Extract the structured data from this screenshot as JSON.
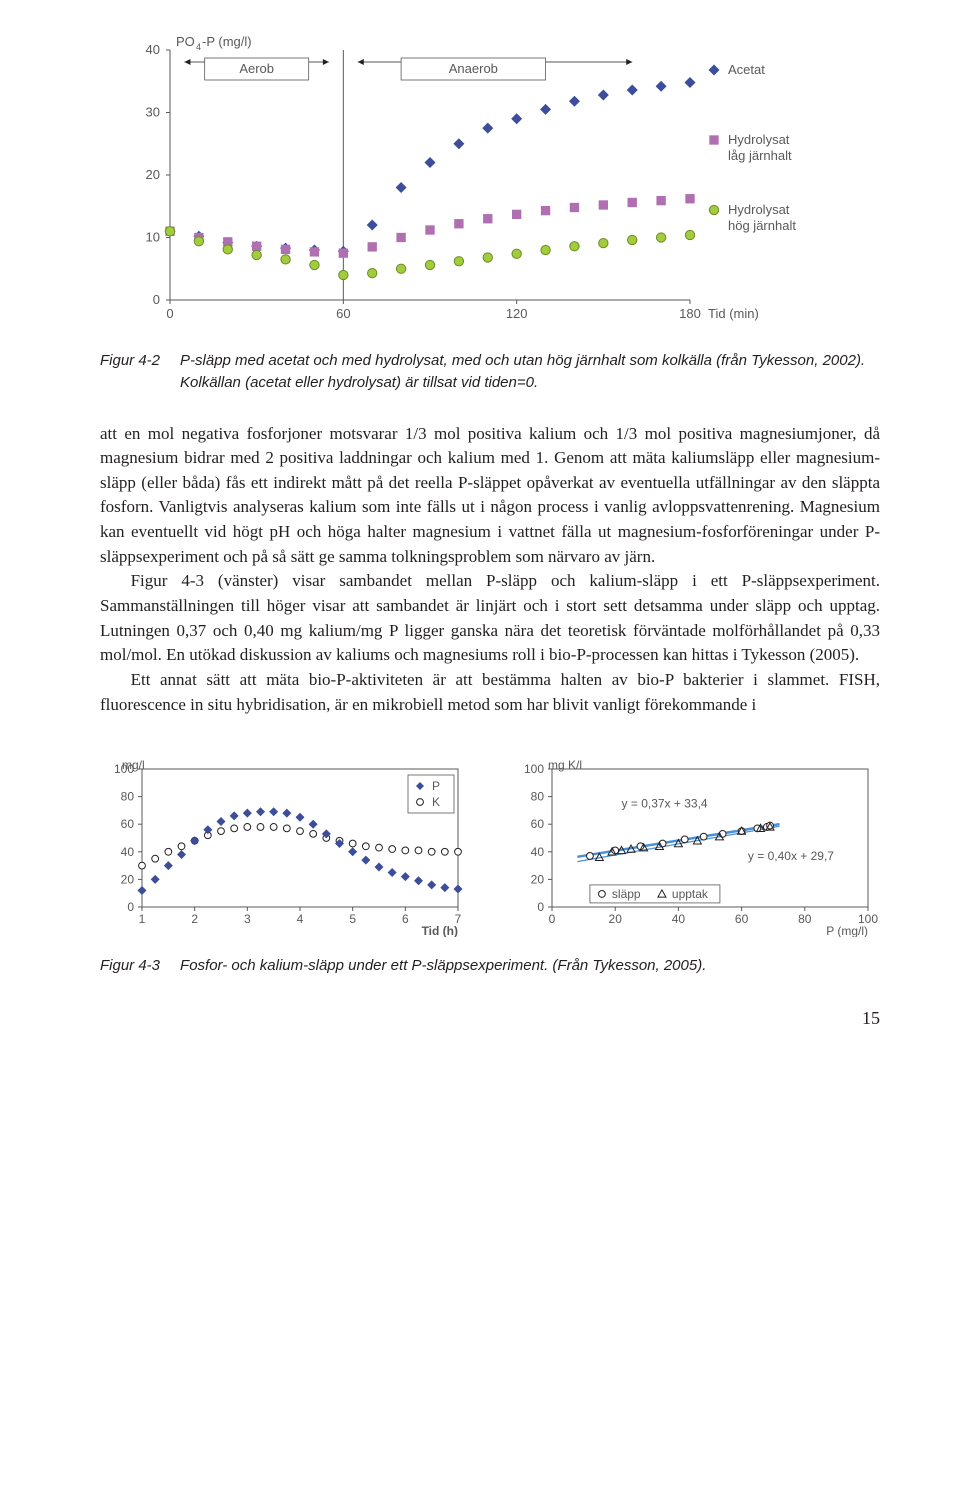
{
  "chart1": {
    "y_title": "PO₄-P (mg/l)",
    "y_ticks": [
      0,
      10,
      20,
      30,
      40
    ],
    "x_ticks": [
      0,
      60,
      120,
      180
    ],
    "x_title": "Tid (min)",
    "region_labels": {
      "aerob": "Aerob",
      "anaerob": "Anaerob"
    },
    "aerob_anaerob_split": 60,
    "series": {
      "acetat": {
        "label": "Acetat",
        "color": "#3b4d9b",
        "marker": "diamond",
        "x": [
          0,
          10,
          20,
          30,
          40,
          50,
          60,
          70,
          80,
          90,
          100,
          110,
          120,
          130,
          140,
          150,
          160,
          170,
          180
        ],
        "y": [
          11,
          10.2,
          9.2,
          8.6,
          8.3,
          8.0,
          7.8,
          12.0,
          18.0,
          22.0,
          25.0,
          27.5,
          29.0,
          30.5,
          31.8,
          32.8,
          33.6,
          34.2,
          34.8
        ]
      },
      "hydrolysat_low": {
        "label": "Hydrolysat låg järnhalt",
        "color": "#b06fb0",
        "marker": "square",
        "x": [
          0,
          10,
          20,
          30,
          40,
          50,
          60,
          70,
          80,
          90,
          100,
          110,
          120,
          130,
          140,
          150,
          160,
          170,
          180
        ],
        "y": [
          11,
          10.0,
          9.3,
          8.6,
          8.1,
          7.7,
          7.5,
          8.5,
          10.0,
          11.2,
          12.2,
          13.0,
          13.7,
          14.3,
          14.8,
          15.2,
          15.6,
          15.9,
          16.2
        ]
      },
      "hydrolysat_high": {
        "label": "Hydrolysat hög järnhalt",
        "color": "#a0cc3e",
        "marker": "circle",
        "x": [
          0,
          10,
          20,
          30,
          40,
          50,
          60,
          70,
          80,
          90,
          100,
          110,
          120,
          130,
          140,
          150,
          160,
          170,
          180
        ],
        "y": [
          11,
          9.4,
          8.1,
          7.2,
          6.5,
          5.6,
          4.0,
          4.3,
          5.0,
          5.6,
          6.2,
          6.8,
          7.4,
          8.0,
          8.6,
          9.1,
          9.6,
          10.0,
          10.4
        ]
      }
    }
  },
  "caption1": {
    "label": "Figur 4-2",
    "text": "P-släpp med acetat och med hydrolysat, med och utan hög järnhalt som kolkälla (från Tykesson, 2002). Kolkällan (acetat eller hydrolysat) är tillsat vid tiden=0."
  },
  "paragraphs": [
    "att en mol negativa fosforjoner motsvarar 1/3 mol positiva kalium och 1/3 mol positiva magnesiumjoner, då magnesium bidrar med 2 positiva laddningar och kalium med 1. Genom att mäta kaliumsläpp eller magnesium-släpp (eller båda) fås ett indirekt mått på det reella P-släppet opåverkat av eventuella utfällningar av den släppta fosforn. Vanligtvis analyseras kalium som inte fälls ut i någon process i vanlig avloppsvattenrening. Magnesium kan eventuellt vid högt pH och höga halter magnesium i vattnet fälla ut magnesium-fosforföreningar under P-släppsexperiment och på så sätt ge samma tolkningsproblem som närvaro av järn.",
    "Figur 4-3 (vänster) visar sambandet mellan P-släpp och kalium-släpp i ett P-släppsexperiment. Sammanställningen till höger visar att sambandet är linjärt och i stort sett detsamma under släpp och upptag. Lutningen 0,37 och 0,40 mg kalium/mg P ligger ganska nära det teoretisk förväntade molförhållandet på 0,33 mol/mol. En utökad diskussion av kaliums och magnesiums roll i bio-P-processen kan hittas i Tykesson (2005).",
    "Ett annat sätt att mäta bio-P-aktiviteten är att bestämma halten av bio-P bakterier i slammet. FISH, fluorescence in situ hybridisation, är en mikrobiell metod som har blivit vanligt förekommande i"
  ],
  "chart2": {
    "y_title": "mg/l",
    "y_ticks": [
      0,
      20,
      40,
      60,
      80,
      100
    ],
    "x_ticks": [
      1,
      2,
      3,
      4,
      5,
      6,
      7
    ],
    "x_title": "Tid (h)",
    "legend": {
      "P": "P",
      "K": "K"
    },
    "series": {
      "P": {
        "color": "#3b4d9b",
        "marker": "diamond",
        "x": [
          1.0,
          1.25,
          1.5,
          1.75,
          2.0,
          2.25,
          2.5,
          2.75,
          3.0,
          3.25,
          3.5,
          3.75,
          4.0,
          4.25,
          4.5,
          4.75,
          5.0,
          5.25,
          5.5,
          5.75,
          6.0,
          6.25,
          6.5,
          6.75,
          7.0
        ],
        "y": [
          12,
          20,
          30,
          38,
          48,
          56,
          62,
          66,
          68,
          69,
          69,
          68,
          65,
          60,
          53,
          46,
          40,
          34,
          29,
          25,
          22,
          19,
          16,
          14,
          13
        ]
      },
      "K": {
        "color": "#ffffff",
        "stroke": "#231f20",
        "marker": "circle",
        "x": [
          1.0,
          1.25,
          1.5,
          1.75,
          2.0,
          2.25,
          2.5,
          2.75,
          3.0,
          3.25,
          3.5,
          3.75,
          4.0,
          4.25,
          4.5,
          4.75,
          5.0,
          5.25,
          5.5,
          5.75,
          6.0,
          6.25,
          6.5,
          6.75,
          7.0
        ],
        "y": [
          30,
          35,
          40,
          44,
          48,
          52,
          55,
          57,
          58,
          58,
          58,
          57,
          55,
          53,
          50,
          48,
          46,
          44,
          43,
          42,
          41,
          41,
          40,
          40,
          40
        ]
      }
    }
  },
  "chart3": {
    "y_title": "mg K/l",
    "y_ticks": [
      0,
      20,
      40,
      60,
      80,
      100
    ],
    "x_ticks": [
      0,
      20,
      40,
      60,
      80,
      100
    ],
    "x_title": "P (mg/l)",
    "eq1": "y = 0,37x + 33,4",
    "eq2": "y = 0,40x + 29,7",
    "legend": {
      "slapp": "släpp",
      "upptak": "upptak"
    },
    "line1": {
      "m": 0.37,
      "b": 33.4,
      "color": "#4a90d9",
      "width": 2.5
    },
    "line2": {
      "m": 0.4,
      "b": 29.7,
      "color": "#4a90d9",
      "width": 1.2
    },
    "series": {
      "slapp": {
        "color": "#ffffff",
        "stroke": "#231f20",
        "marker": "circle",
        "x": [
          12,
          20,
          28,
          35,
          42,
          48,
          54,
          60,
          65,
          68,
          69
        ],
        "y": [
          37,
          41,
          44,
          46,
          49,
          51,
          53,
          55,
          57,
          58,
          59
        ]
      },
      "upptak": {
        "color": "none",
        "stroke": "#231f20",
        "marker": "triangle",
        "x": [
          69,
          66,
          60,
          53,
          46,
          40,
          34,
          29,
          25,
          22,
          19,
          15
        ],
        "y": [
          58,
          57,
          55,
          51,
          48,
          46,
          44,
          43,
          42,
          41,
          40,
          36
        ]
      }
    }
  },
  "caption2": {
    "label": "Figur 4-3",
    "text": "Fosfor- och kalium-släpp under ett P-släppsexperiment. (Från Tykesson, 2005)."
  },
  "page_number": "15"
}
